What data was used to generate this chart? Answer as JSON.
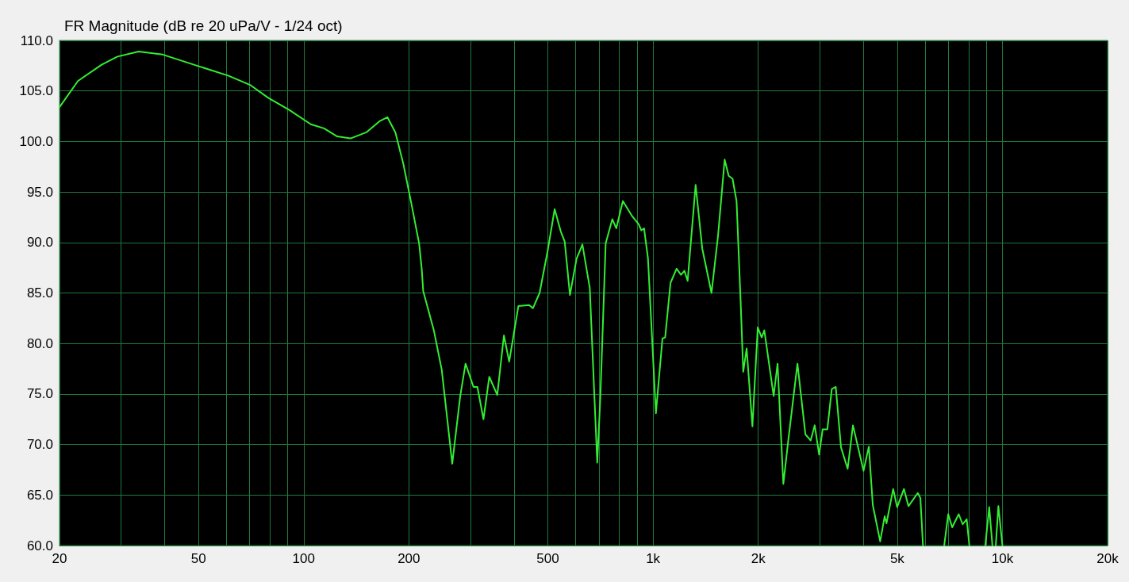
{
  "chart_data": {
    "type": "line",
    "title": "FR Magnitude (dB re 20 uPa/V - 1/24 oct)",
    "log": "x",
    "grid": true,
    "marker": "none",
    "line_style": "solid",
    "xlim": [
      20,
      20000
    ],
    "xticks": [
      20,
      {
        "value": 30,
        "label": null
      },
      {
        "value": 40,
        "label": null
      },
      50,
      {
        "value": 60,
        "label": null
      },
      {
        "value": 70,
        "label": null
      },
      {
        "value": 80,
        "label": null
      },
      {
        "value": 90,
        "label": null
      },
      100,
      200,
      {
        "value": 300,
        "label": null
      },
      {
        "value": 400,
        "label": null
      },
      500,
      {
        "value": 600,
        "label": null
      },
      {
        "value": 700,
        "label": null
      },
      {
        "value": 800,
        "label": null
      },
      {
        "value": 900,
        "label": null
      },
      {
        "value": 1000,
        "label": "1k"
      },
      {
        "value": 2000,
        "label": "2k"
      },
      {
        "value": 3000,
        "label": null
      },
      {
        "value": 4000,
        "label": null
      },
      {
        "value": 5000,
        "label": "5k"
      },
      {
        "value": 6000,
        "label": null
      },
      {
        "value": 7000,
        "label": null
      },
      {
        "value": 8000,
        "label": null
      },
      {
        "value": 9000,
        "label": null
      },
      {
        "value": 10000,
        "label": "10k"
      },
      {
        "value": 20000,
        "label": "20k"
      }
    ],
    "ylim": [
      60,
      110
    ],
    "yticks": [
      {
        "value": 60,
        "label": "60.0"
      },
      {
        "value": 65,
        "label": "65.0"
      },
      {
        "value": 70,
        "label": "70.0"
      },
      {
        "value": 75,
        "label": "75.0"
      },
      {
        "value": 80,
        "label": "80.0"
      },
      {
        "value": 85,
        "label": "85.0"
      },
      {
        "value": 90,
        "label": "90.0"
      },
      {
        "value": 95,
        "label": "95.0"
      },
      {
        "value": 100,
        "label": "100.0"
      },
      {
        "value": 105,
        "label": "105.0"
      },
      {
        "value": 110,
        "label": "110.0"
      }
    ],
    "series": [
      {
        "color": "#33ee33",
        "x": [
          20,
          22.6,
          26.4,
          29.3,
          33.7,
          39.5,
          49.5,
          61,
          70.2,
          79.3,
          91.1,
          104.8,
          114.3,
          124.7,
          136.1,
          151.1,
          164.8,
          173.6,
          183,
          192.8,
          203.2,
          214,
          217.8,
          219.8,
          235.8,
          248.4,
          266.2,
          280.6,
          290.6,
          306.2,
          314.2,
          327,
          339.8,
          358.2,
          374.2,
          387.4,
          411.6,
          441.6,
          453.2,
          473.4,
          498.8,
          522.8,
          544.2,
          558.6,
          578.2,
          604.2,
          627.8,
          659,
          692.2,
          706.8,
          731.8,
          764.4,
          784.8,
          819.6,
          871.4,
          910,
          925.8,
          942.4,
          967.2,
          1019,
          1064,
          1083,
          1122,
          1168,
          1202,
          1230,
          1256,
          1324,
          1383,
          1470,
          1535,
          1603,
          1646,
          1689,
          1734,
          1780,
          1812,
          1853,
          1925,
          1994,
          2046,
          2082,
          2214,
          2272,
          2360,
          2436,
          2590,
          2730,
          2826,
          2902,
          2988,
          3058,
          3154,
          3248,
          3334,
          3452,
          3606,
          3734,
          4004,
          4146,
          4256,
          4468,
          4602,
          4658,
          4868,
          4996,
          5226,
          5384,
          5724,
          5824,
          5924,
          6400,
          6814,
          6996,
          7182,
          7498,
          7696,
          7902,
          8042,
          8500,
          8932,
          9168,
          9362,
          9470,
          9572,
          9738,
          10000
        ],
        "values": [
          103.4,
          106.0,
          107.6,
          108.4,
          108.9,
          108.6,
          107.5,
          106.5,
          105.6,
          104.3,
          103.1,
          101.7,
          101.3,
          100.5,
          100.3,
          100.9,
          102.0,
          102.4,
          100.9,
          97.8,
          93.9,
          89.9,
          87.3,
          85.2,
          81.3,
          77.4,
          68.1,
          74.8,
          78.0,
          75.7,
          75.7,
          72.5,
          76.7,
          74.9,
          80.8,
          78.2,
          83.7,
          83.8,
          83.5,
          85.0,
          89.1,
          93.3,
          91.1,
          90.1,
          84.8,
          88.4,
          89.8,
          85.5,
          68.2,
          74.8,
          89.9,
          92.3,
          91.4,
          94.1,
          92.6,
          91.8,
          91.2,
          91.4,
          88.4,
          73.1,
          80.5,
          80.6,
          86.0,
          87.4,
          86.8,
          87.2,
          86.2,
          95.7,
          89.4,
          85.0,
          90.7,
          98.2,
          96.6,
          96.3,
          94.1,
          84.4,
          77.2,
          79.5,
          71.8,
          81.6,
          80.6,
          81.3,
          74.8,
          78.0,
          66.1,
          70.3,
          78.0,
          71.0,
          70.4,
          71.9,
          69.0,
          71.5,
          71.5,
          75.5,
          75.7,
          69.7,
          67.6,
          71.9,
          67.4,
          69.8,
          64.0,
          60.4,
          62.9,
          62.2,
          65.6,
          63.8,
          65.6,
          63.9,
          65.2,
          64.7,
          60.0,
          null,
          60.0,
          63.1,
          61.8,
          63.1,
          62.1,
          62.6,
          60.0,
          null,
          60.0,
          63.8,
          60.0,
          null,
          60.0,
          63.9,
          60.0
        ]
      }
    ]
  }
}
